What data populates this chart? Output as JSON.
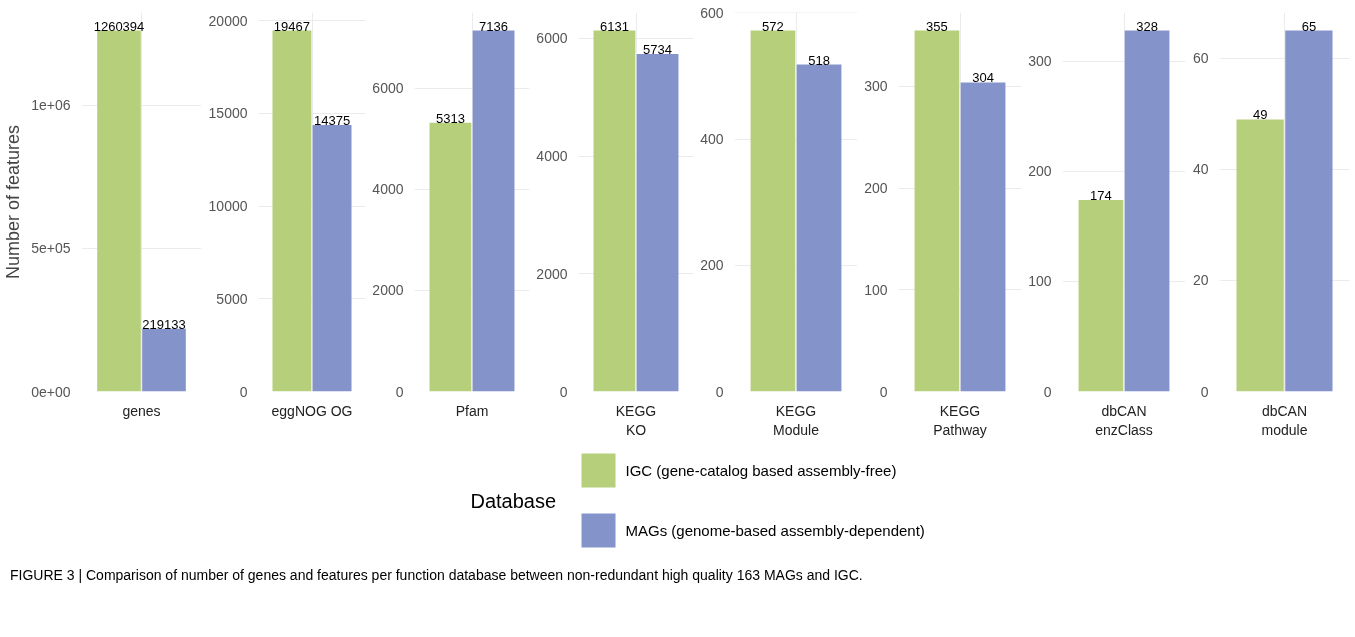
{
  "chart_data": [
    {
      "type": "bar",
      "ylabel": "Number of features",
      "categories": [
        "genes"
      ],
      "series": [
        {
          "name": "IGC (gene-catalog based assembly-free)",
          "color": "#b5cf7b",
          "values": [
            1260394
          ]
        },
        {
          "name": "MAGs (genome-based assembly-dependent)",
          "color": "#8593cb",
          "values": [
            219133
          ]
        }
      ],
      "ylim": [
        0,
        1323414
      ],
      "yticks": [
        {
          "value": 0,
          "label": "0e+00"
        },
        {
          "value": 500000,
          "label": "5e+05"
        },
        {
          "value": 1000000,
          "label": "1e+06"
        }
      ],
      "grid": true,
      "data_labels": true,
      "legend": "bottom",
      "legend_title": "Database",
      "annotations": [
        "FIGURE 3 | Comparison of number of genes and features per function database between non-redundant high quality 163 MAGs and IGC."
      ]
    },
    {
      "type": "bar",
      "categories": [
        "eggNOG OG"
      ],
      "series": [
        {
          "color": "#b5cf7b",
          "values": [
            19467
          ]
        },
        {
          "color": "#8593cb",
          "values": [
            14375
          ]
        }
      ],
      "ylim": [
        0,
        20440
      ],
      "yticks": [
        0,
        5000,
        10000,
        15000,
        20000
      ],
      "grid": true,
      "data_labels": true
    },
    {
      "type": "bar",
      "categories": [
        "Pfam"
      ],
      "series": [
        {
          "color": "#b5cf7b",
          "values": [
            5313
          ]
        },
        {
          "color": "#8593cb",
          "values": [
            7136
          ]
        }
      ],
      "ylim": [
        0,
        7493
      ],
      "yticks": [
        0,
        2000,
        4000,
        6000
      ],
      "grid": true,
      "data_labels": true
    },
    {
      "type": "bar",
      "categories": [
        "KEGG\nKO"
      ],
      "series": [
        {
          "color": "#b5cf7b",
          "values": [
            6131
          ]
        },
        {
          "color": "#8593cb",
          "values": [
            5734
          ]
        }
      ],
      "ylim": [
        0,
        6438
      ],
      "yticks": [
        0,
        2000,
        4000,
        6000
      ],
      "grid": true,
      "data_labels": true
    },
    {
      "type": "bar",
      "categories": [
        "KEGG\nModule"
      ],
      "series": [
        {
          "color": "#b5cf7b",
          "values": [
            572
          ]
        },
        {
          "color": "#8593cb",
          "values": [
            518
          ]
        }
      ],
      "ylim": [
        0,
        600.6
      ],
      "yticks": [
        0,
        200,
        400,
        600
      ],
      "grid": true,
      "data_labels": true
    },
    {
      "type": "bar",
      "categories": [
        "KEGG\nPathway"
      ],
      "series": [
        {
          "color": "#b5cf7b",
          "values": [
            355
          ]
        },
        {
          "color": "#8593cb",
          "values": [
            304
          ]
        }
      ],
      "ylim": [
        0,
        372.75
      ],
      "yticks": [
        0,
        100,
        200,
        300
      ],
      "grid": true,
      "data_labels": true
    },
    {
      "type": "bar",
      "categories": [
        "dbCAN\nenzClass"
      ],
      "series": [
        {
          "color": "#b5cf7b",
          "values": [
            174
          ]
        },
        {
          "color": "#8593cb",
          "values": [
            328
          ]
        }
      ],
      "ylim": [
        0,
        344.4
      ],
      "yticks": [
        0,
        100,
        200,
        300
      ],
      "grid": true,
      "data_labels": true
    },
    {
      "type": "bar",
      "categories": [
        "dbCAN\nmodule"
      ],
      "series": [
        {
          "color": "#b5cf7b",
          "values": [
            49
          ]
        },
        {
          "color": "#8593cb",
          "values": [
            65
          ]
        }
      ],
      "ylim": [
        0,
        68.25
      ],
      "yticks": [
        0,
        20,
        40,
        60
      ],
      "grid": true,
      "data_labels": true
    }
  ]
}
